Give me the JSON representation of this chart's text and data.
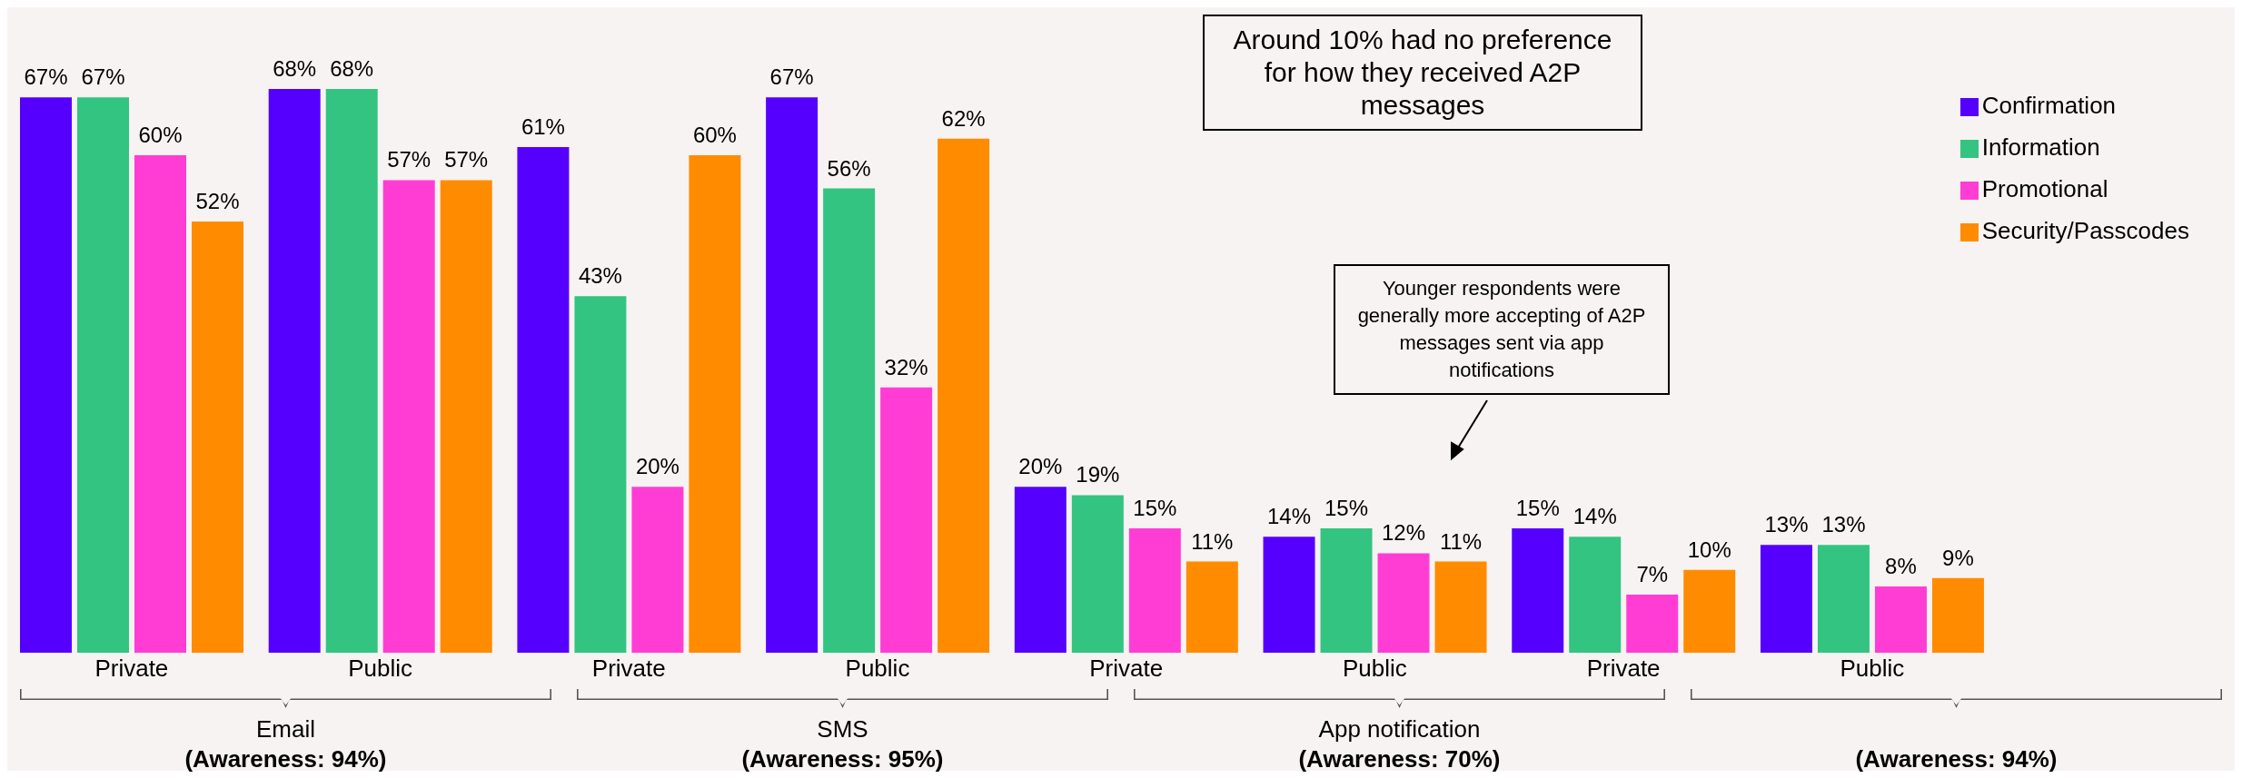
{
  "chart_data": {
    "type": "bar",
    "categories": [
      "Private",
      "Public",
      "Private",
      "Public",
      "Private",
      "Public",
      "Private",
      "Public"
    ],
    "series": [
      {
        "name": "Confirmation",
        "color": "#5500ff",
        "values": [
          67,
          68,
          61,
          67,
          20,
          14,
          15,
          13
        ],
        "value_labels": [
          "67%",
          "68%",
          "61%",
          "67%",
          "20%",
          "14%",
          "15%",
          "13%"
        ]
      },
      {
        "name": "Information",
        "color": "#33c481",
        "values": [
          67,
          68,
          43,
          56,
          19,
          15,
          14,
          13
        ],
        "value_labels": [
          "67%",
          "68%",
          "43%",
          "56%",
          "19%",
          "15%",
          "14%",
          "13%"
        ]
      },
      {
        "name": "Promotional",
        "color": "#ff3dd5",
        "values": [
          60,
          57,
          20,
          32,
          15,
          12,
          7,
          8
        ],
        "value_labels": [
          "60%",
          "57%",
          "20%",
          "32%",
          "15%",
          "12%",
          "7%",
          "8%"
        ]
      },
      {
        "name": "Security/Passcodes",
        "color": "#ff8c00",
        "values": [
          52,
          57,
          60,
          62,
          11,
          11,
          10,
          9
        ],
        "value_labels": [
          "52%",
          "57%",
          "60%",
          "62%",
          "11%",
          "11%",
          "10%",
          "9%"
        ]
      }
    ],
    "annotations": [
      "Email\n(Awareness: 94%)",
      "SMS\n(Awareness: 95%)",
      "App notification\n(Awareness: 70%)",
      "(Awareness: 94%)",
      "Around 10% had no preference for how they received A2P messages",
      "Younger respondents were generally more accepting of A2P messages sent via app notifications"
    ],
    "legend": "top right",
    "grid": false
  }
}
